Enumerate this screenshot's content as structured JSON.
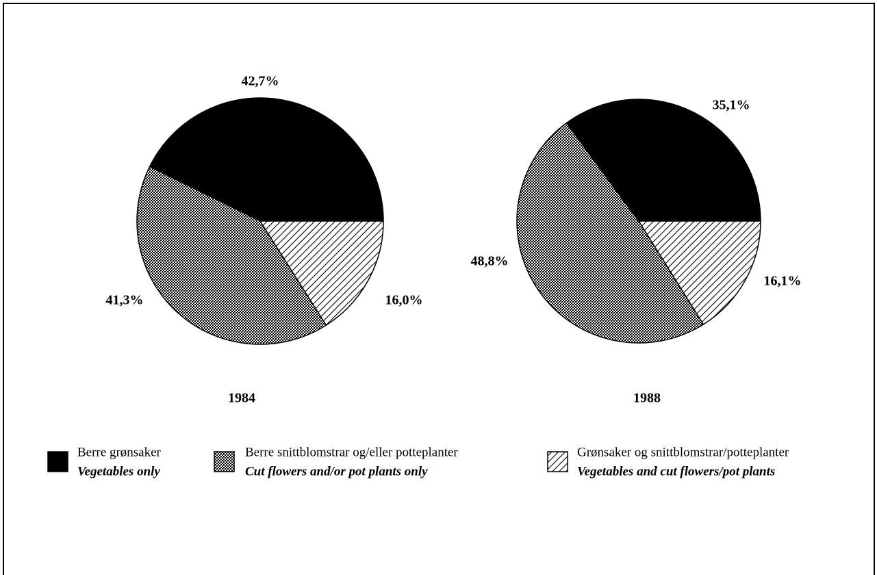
{
  "chart_data": [
    {
      "type": "pie",
      "title": "1984",
      "values": [
        42.7,
        41.3,
        16.0
      ],
      "value_labels": [
        "42,7%",
        "41,3%",
        "16,0%"
      ]
    },
    {
      "type": "pie",
      "title": "1988",
      "values": [
        35.1,
        48.8,
        16.1
      ],
      "value_labels": [
        "35,1%",
        "48,8%",
        "16,1%"
      ]
    }
  ],
  "legend": {
    "items": [
      {
        "name": "Berre grønsaker",
        "translation": "Vegetables only",
        "pattern": "solid",
        "color": "#000000"
      },
      {
        "name": "Berre snittblomstrar og/eller potteplanter",
        "translation": "Cut flowers and/or pot plants only",
        "pattern": "dots",
        "color": "#000000"
      },
      {
        "name": "Grønsaker og snittblomstrar/potteplanter",
        "translation": "Vegetables and cut flowers/pot plants",
        "pattern": "hatch",
        "color": "#000000"
      }
    ]
  }
}
